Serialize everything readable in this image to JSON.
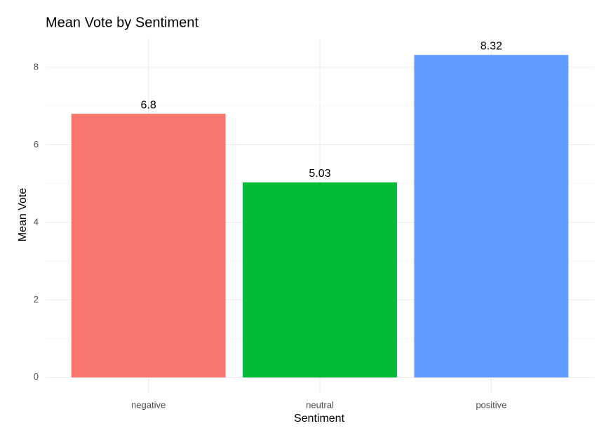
{
  "chart_data": {
    "type": "bar",
    "title": "Mean Vote by Sentiment",
    "x_label": "Sentiment",
    "y_label": "Mean Vote",
    "categories": [
      "negative",
      "neutral",
      "positive"
    ],
    "values": [
      6.8,
      5.03,
      8.32
    ],
    "colors": [
      "#F8766D",
      "#00BA38",
      "#619CFF"
    ],
    "ylim": [
      -0.42,
      8.74
    ],
    "yticks": [
      0,
      2,
      4,
      6,
      8
    ],
    "grid": true
  }
}
